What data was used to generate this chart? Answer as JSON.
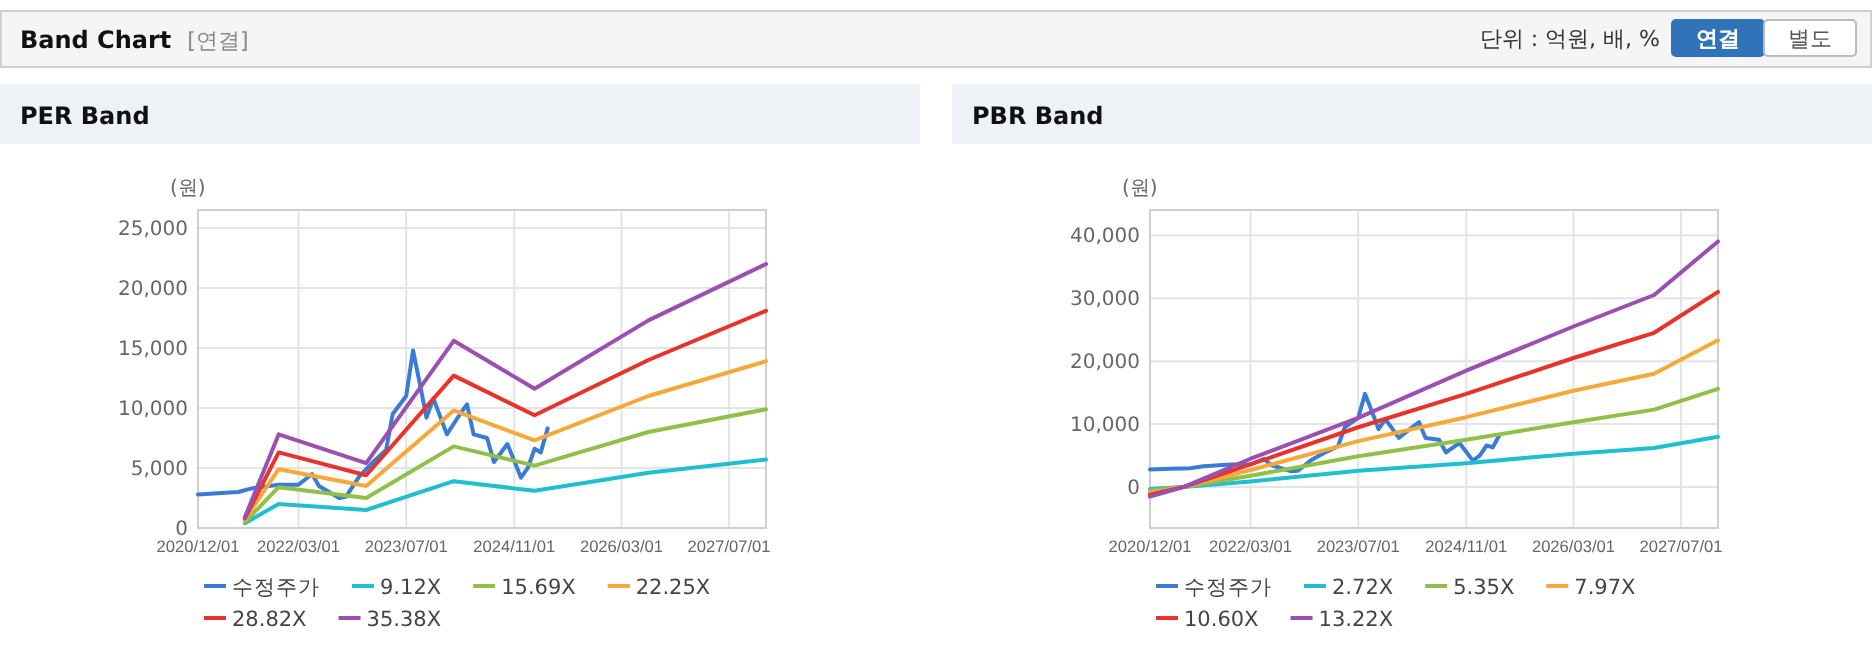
{
  "chart_data": [
    {
      "type": "other",
      "title": "Band Chart",
      "subtitle": "[연결]",
      "annotations": [
        "단위 : 억원, 배, %",
        "연결",
        "별도"
      ]
    },
    {
      "type": "line",
      "title": "PER Band",
      "ylabel": "(원)",
      "grid": true,
      "legend": "bottom",
      "xlim": [
        "2020-12-01",
        "2027-12-15"
      ],
      "xticks": [
        {
          "value": "2020-12-01",
          "label": "2020/12/01"
        },
        {
          "value": "2022-03-01",
          "label": "2022/03/01"
        },
        {
          "value": "2023-07-01",
          "label": "2023/07/01"
        },
        {
          "value": "2024-11-01",
          "label": "2024/11/01"
        },
        {
          "value": "2026-03-01",
          "label": "2026/03/01"
        },
        {
          "value": "2027-07-01",
          "label": "2027/07/01"
        }
      ],
      "ylim": [
        0,
        26500
      ],
      "yticks": [
        0,
        {
          "value": 5000,
          "label": "5,000"
        },
        {
          "value": 10000,
          "label": "10,000"
        },
        {
          "value": 15000,
          "label": "15,000"
        },
        {
          "value": 20000,
          "label": "20,000"
        },
        {
          "value": 25000,
          "label": "25,000"
        }
      ],
      "series": [
        {
          "name": "수정주가",
          "color": "#3a7bd5",
          "x": [
            "2020-12-01",
            "2021-03-01",
            "2021-06-01",
            "2021-08-01",
            "2021-12-01",
            "2022-03-01",
            "2022-05-01",
            "2022-06-01",
            "2022-09-01",
            "2022-10-01",
            "2022-12-01",
            "2023-02-01",
            "2023-04-01",
            "2023-05-01",
            "2023-07-01",
            "2023-08-01",
            "2023-09-01",
            "2023-10-01",
            "2023-11-01",
            "2024-01-01",
            "2024-03-01",
            "2024-04-01",
            "2024-05-01",
            "2024-07-01",
            "2024-08-01",
            "2024-10-01",
            "2024-12-01",
            "2025-01-01",
            "2025-02-01",
            "2025-03-01",
            "2025-04-01"
          ],
          "values": [
            2800,
            2900,
            3000,
            3300,
            3600,
            3600,
            4500,
            3500,
            2500,
            2600,
            4300,
            5500,
            6500,
            9500,
            11000,
            14800,
            12000,
            9200,
            10800,
            7800,
            9500,
            10300,
            7800,
            7500,
            5500,
            7000,
            4200,
            5000,
            6600,
            6300,
            8300
          ]
        },
        {
          "name": "9.12X",
          "color": "#1fbfcf",
          "x": [
            "2021-07-01",
            "2021-12-01",
            "2023-01-01",
            "2024-02-01",
            "2025-02-01",
            "2026-07-01",
            "2027-12-15"
          ],
          "values": [
            400,
            2000,
            1500,
            3900,
            3100,
            4600,
            5700
          ]
        },
        {
          "name": "15.69X",
          "color": "#8fc04a",
          "x": [
            "2021-07-01",
            "2021-12-01",
            "2023-01-01",
            "2024-02-01",
            "2025-02-01",
            "2026-07-01",
            "2027-12-15"
          ],
          "values": [
            500,
            3400,
            2500,
            6800,
            5200,
            8000,
            9900
          ]
        },
        {
          "name": "22.25X",
          "color": "#f5a93a",
          "x": [
            "2021-07-01",
            "2021-12-01",
            "2023-01-01",
            "2024-02-01",
            "2025-02-01",
            "2026-07-01",
            "2027-12-15"
          ],
          "values": [
            700,
            4900,
            3500,
            9800,
            7300,
            11000,
            13900
          ]
        },
        {
          "name": "28.82X",
          "color": "#e8332a",
          "x": [
            "2021-07-01",
            "2021-12-01",
            "2023-01-01",
            "2024-02-01",
            "2025-02-01",
            "2026-07-01",
            "2027-12-15"
          ],
          "values": [
            800,
            6300,
            4400,
            12700,
            9400,
            14000,
            18100
          ]
        },
        {
          "name": "35.38X",
          "color": "#9b4fb0",
          "x": [
            "2021-07-01",
            "2021-12-01",
            "2023-01-01",
            "2024-02-01",
            "2025-02-01",
            "2026-07-01",
            "2027-12-15"
          ],
          "values": [
            900,
            7800,
            5400,
            15600,
            11600,
            17300,
            22000
          ]
        }
      ]
    },
    {
      "type": "line",
      "title": "PBR Band",
      "ylabel": "(원)",
      "grid": true,
      "legend": "bottom",
      "xlim": [
        "2020-12-01",
        "2027-12-15"
      ],
      "xticks": [
        {
          "value": "2020-12-01",
          "label": "2020/12/01"
        },
        {
          "value": "2022-03-01",
          "label": "2022/03/01"
        },
        {
          "value": "2023-07-01",
          "label": "2023/07/01"
        },
        {
          "value": "2024-11-01",
          "label": "2024/11/01"
        },
        {
          "value": "2026-03-01",
          "label": "2026/03/01"
        },
        {
          "value": "2027-07-01",
          "label": "2027/07/01"
        }
      ],
      "ylim": [
        -6500,
        44000
      ],
      "yticks": [
        0,
        {
          "value": 10000,
          "label": "10,000"
        },
        {
          "value": 20000,
          "label": "20,000"
        },
        {
          "value": 30000,
          "label": "30,000"
        },
        {
          "value": 40000,
          "label": "40,000"
        }
      ],
      "series": [
        {
          "name": "수정주가",
          "color": "#3a7bd5",
          "x": [
            "2020-12-01",
            "2021-03-01",
            "2021-06-01",
            "2021-08-01",
            "2021-12-01",
            "2022-03-01",
            "2022-05-01",
            "2022-06-01",
            "2022-09-01",
            "2022-10-01",
            "2022-12-01",
            "2023-02-01",
            "2023-04-01",
            "2023-05-01",
            "2023-07-01",
            "2023-08-01",
            "2023-09-01",
            "2023-10-01",
            "2023-11-01",
            "2024-01-01",
            "2024-03-01",
            "2024-04-01",
            "2024-05-01",
            "2024-07-01",
            "2024-08-01",
            "2024-10-01",
            "2024-12-01",
            "2025-01-01",
            "2025-02-01",
            "2025-03-01",
            "2025-04-01"
          ],
          "values": [
            2800,
            2900,
            3000,
            3300,
            3600,
            3600,
            4500,
            3500,
            2500,
            2600,
            4300,
            5500,
            6500,
            9500,
            11000,
            14800,
            12000,
            9200,
            10800,
            7800,
            9500,
            10300,
            7800,
            7500,
            5500,
            7000,
            4200,
            5000,
            6600,
            6300,
            8300
          ]
        },
        {
          "name": "2.72X",
          "color": "#1fbfcf",
          "x": [
            "2020-12-01",
            "2021-05-01",
            "2022-03-01",
            "2023-07-01",
            "2024-11-01",
            "2026-03-01",
            "2027-03-01",
            "2027-12-15"
          ],
          "values": [
            -300,
            0,
            900,
            2600,
            3800,
            5300,
            6200,
            8000
          ]
        },
        {
          "name": "5.35X",
          "color": "#8fc04a",
          "x": [
            "2020-12-01",
            "2021-05-01",
            "2022-03-01",
            "2023-07-01",
            "2024-11-01",
            "2026-03-01",
            "2027-03-01",
            "2027-12-15"
          ],
          "values": [
            -600,
            0,
            1800,
            4900,
            7500,
            10300,
            12300,
            15600
          ]
        },
        {
          "name": "7.97X",
          "color": "#f5a93a",
          "x": [
            "2020-12-01",
            "2021-05-01",
            "2022-03-01",
            "2023-07-01",
            "2024-11-01",
            "2026-03-01",
            "2027-03-01",
            "2027-12-15"
          ],
          "values": [
            -900,
            0,
            2700,
            7300,
            11100,
            15300,
            18000,
            23300
          ]
        },
        {
          "name": "10.60X",
          "color": "#e8332a",
          "x": [
            "2020-12-01",
            "2021-05-01",
            "2022-03-01",
            "2023-07-01",
            "2024-11-01",
            "2026-03-01",
            "2027-03-01",
            "2027-12-15"
          ],
          "values": [
            -1200,
            0,
            3600,
            9500,
            14800,
            20500,
            24500,
            31000
          ]
        },
        {
          "name": "13.22X",
          "color": "#9b4fb0",
          "x": [
            "2020-12-01",
            "2021-05-01",
            "2022-03-01",
            "2023-07-01",
            "2024-11-01",
            "2026-03-01",
            "2027-03-01",
            "2027-12-15"
          ],
          "values": [
            -1500,
            0,
            4500,
            11000,
            18500,
            25500,
            30500,
            39000
          ]
        }
      ]
    }
  ]
}
